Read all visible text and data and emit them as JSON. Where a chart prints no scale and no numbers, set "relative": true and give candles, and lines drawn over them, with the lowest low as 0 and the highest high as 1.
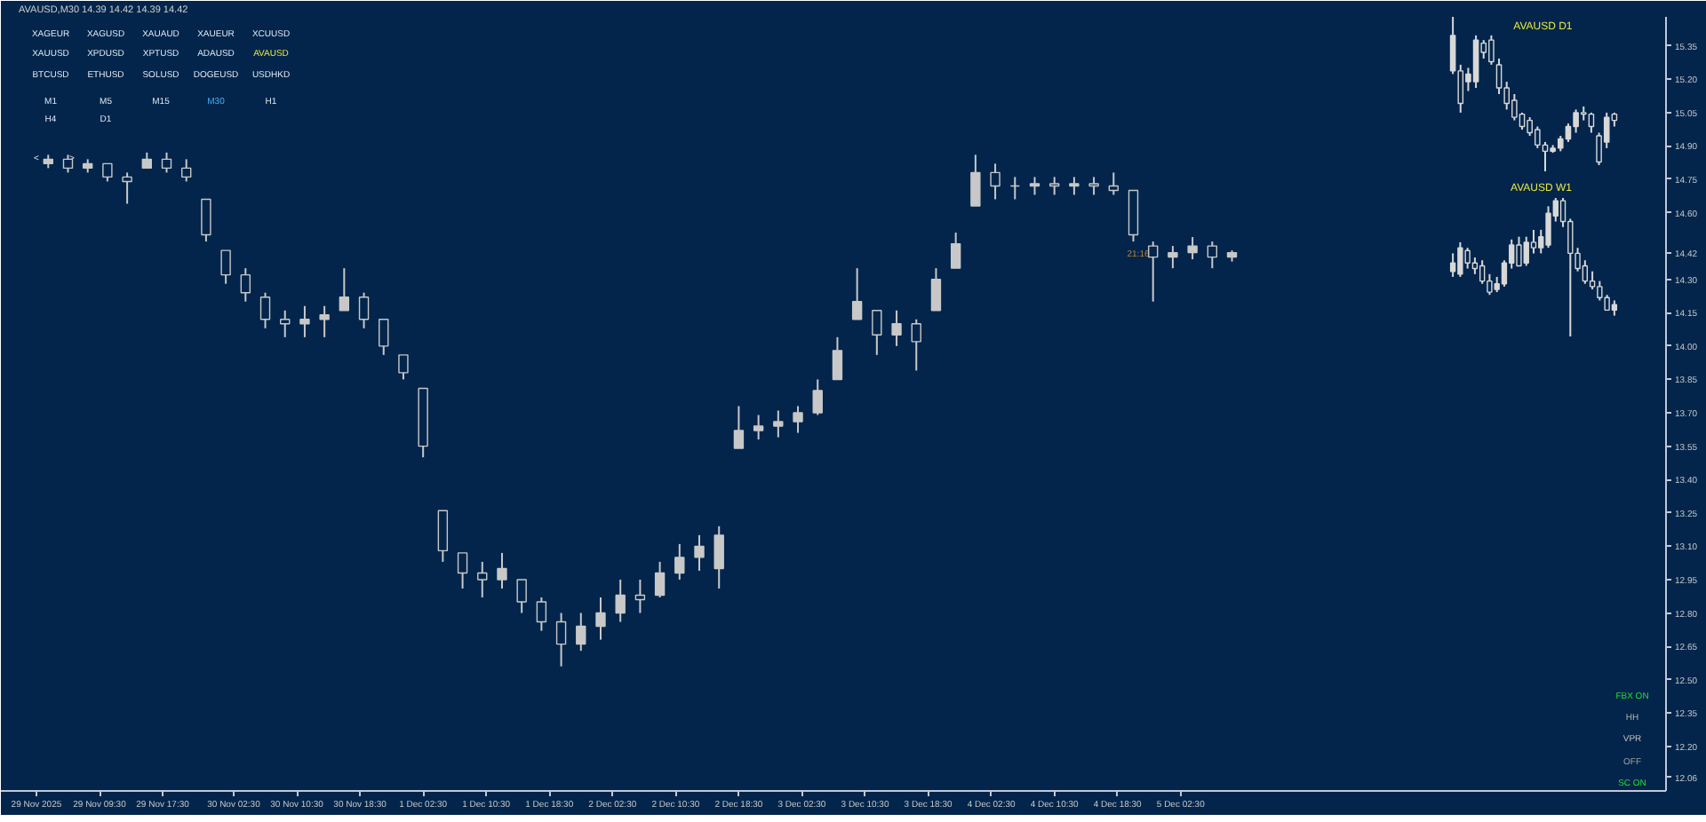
{
  "chart_data": [
    {
      "type": "candlestick",
      "title": "AVAUSD,M30 14.39 14.42 14.39 14.42",
      "color": "#c8c8c8",
      "x": [
        "2025-11-29T03:00",
        "2025-11-29T05:30",
        "2025-11-29T08:00",
        "2025-11-29T10:30",
        "2025-11-29T13:00",
        "2025-11-29T15:30",
        "2025-11-29T18:00",
        "2025-11-29T20:30",
        "2025-11-29T23:00",
        "2025-11-30T01:30",
        "2025-11-30T04:00",
        "2025-11-30T06:30",
        "2025-11-30T09:00",
        "2025-11-30T11:30",
        "2025-11-30T14:00",
        "2025-11-30T16:30",
        "2025-11-30T19:00",
        "2025-11-30T21:30",
        "2025-12-01T00:00",
        "2025-12-01T02:30",
        "2025-12-01T05:00",
        "2025-12-01T07:30",
        "2025-12-01T10:00",
        "2025-12-01T12:30",
        "2025-12-01T15:00",
        "2025-12-01T17:30",
        "2025-12-01T20:00",
        "2025-12-01T22:30",
        "2025-12-02T01:00",
        "2025-12-02T03:30",
        "2025-12-02T06:00",
        "2025-12-02T08:30",
        "2025-12-02T11:00",
        "2025-12-02T13:30",
        "2025-12-02T16:00",
        "2025-12-02T18:30",
        "2025-12-02T21:00",
        "2025-12-02T23:30",
        "2025-12-03T02:00",
        "2025-12-03T04:30",
        "2025-12-03T07:00",
        "2025-12-03T09:30",
        "2025-12-03T12:00",
        "2025-12-03T14:30",
        "2025-12-03T17:00",
        "2025-12-03T19:30",
        "2025-12-03T22:00",
        "2025-12-04T00:30",
        "2025-12-04T03:00",
        "2025-12-04T05:30",
        "2025-12-04T08:00",
        "2025-12-04T10:30",
        "2025-12-04T13:00",
        "2025-12-04T15:30",
        "2025-12-04T18:00",
        "2025-12-04T20:30",
        "2025-12-04T23:00",
        "2025-12-05T01:30",
        "2025-12-05T04:00",
        "2025-12-05T06:30",
        "2025-12-05T09:00"
      ],
      "ohlc": [
        [
          14.82,
          14.86,
          14.8,
          14.84
        ],
        [
          14.84,
          14.86,
          14.78,
          14.8
        ],
        [
          14.8,
          14.84,
          14.78,
          14.82
        ],
        [
          14.82,
          14.82,
          14.74,
          14.76
        ],
        [
          14.76,
          14.78,
          14.64,
          14.74
        ],
        [
          14.8,
          14.87,
          14.8,
          14.84
        ],
        [
          14.84,
          14.87,
          14.78,
          14.8
        ],
        [
          14.8,
          14.84,
          14.74,
          14.76
        ],
        [
          14.66,
          14.66,
          14.47,
          14.5
        ],
        [
          14.43,
          14.43,
          14.28,
          14.32
        ],
        [
          14.32,
          14.35,
          14.2,
          14.24
        ],
        [
          14.22,
          14.24,
          14.08,
          14.12
        ],
        [
          14.12,
          14.16,
          14.04,
          14.1
        ],
        [
          14.1,
          14.18,
          14.04,
          14.12
        ],
        [
          14.12,
          14.18,
          14.04,
          14.14
        ],
        [
          14.16,
          14.35,
          14.16,
          14.22
        ],
        [
          14.22,
          14.24,
          14.08,
          14.12
        ],
        [
          14.12,
          14.12,
          13.96,
          14.0
        ],
        [
          13.96,
          13.96,
          13.85,
          13.88
        ],
        [
          13.81,
          13.81,
          13.5,
          13.55
        ],
        [
          13.26,
          13.26,
          13.03,
          13.08
        ],
        [
          13.07,
          13.07,
          12.91,
          12.98
        ],
        [
          12.98,
          13.03,
          12.87,
          12.95
        ],
        [
          12.95,
          13.07,
          12.91,
          13.0
        ],
        [
          12.95,
          12.95,
          12.8,
          12.85
        ],
        [
          12.85,
          12.87,
          12.72,
          12.76
        ],
        [
          12.76,
          12.8,
          12.56,
          12.66
        ],
        [
          12.66,
          12.8,
          12.63,
          12.74
        ],
        [
          12.74,
          12.87,
          12.68,
          12.8
        ],
        [
          12.8,
          12.95,
          12.76,
          12.88
        ],
        [
          12.88,
          12.95,
          12.8,
          12.86
        ],
        [
          12.88,
          13.03,
          12.87,
          12.98
        ],
        [
          12.98,
          13.11,
          12.95,
          13.05
        ],
        [
          13.05,
          13.15,
          12.99,
          13.1
        ],
        [
          13.0,
          13.19,
          12.91,
          13.15
        ],
        [
          13.54,
          13.73,
          13.54,
          13.62
        ],
        [
          13.62,
          13.69,
          13.58,
          13.64
        ],
        [
          13.64,
          13.71,
          13.59,
          13.66
        ],
        [
          13.66,
          13.73,
          13.61,
          13.7
        ],
        [
          13.7,
          13.85,
          13.69,
          13.8
        ],
        [
          13.85,
          14.04,
          13.85,
          13.98
        ],
        [
          14.12,
          14.35,
          14.12,
          14.2
        ],
        [
          14.16,
          14.16,
          13.96,
          14.05
        ],
        [
          14.05,
          14.16,
          14.0,
          14.1
        ],
        [
          14.1,
          14.12,
          13.89,
          14.02
        ],
        [
          14.16,
          14.35,
          14.16,
          14.3
        ],
        [
          14.35,
          14.51,
          14.35,
          14.46
        ],
        [
          14.63,
          14.86,
          14.63,
          14.78
        ],
        [
          14.78,
          14.82,
          14.66,
          14.72
        ],
        [
          14.72,
          14.76,
          14.66,
          14.72
        ],
        [
          14.72,
          14.76,
          14.68,
          14.73
        ],
        [
          14.73,
          14.76,
          14.68,
          14.72
        ],
        [
          14.72,
          14.76,
          14.68,
          14.73
        ],
        [
          14.73,
          14.76,
          14.68,
          14.72
        ],
        [
          14.72,
          14.78,
          14.68,
          14.7
        ],
        [
          14.7,
          14.7,
          14.47,
          14.5
        ],
        [
          14.45,
          14.47,
          14.2,
          14.4
        ],
        [
          14.4,
          14.45,
          14.35,
          14.42
        ],
        [
          14.42,
          14.49,
          14.39,
          14.45
        ],
        [
          14.45,
          14.47,
          14.35,
          14.4
        ],
        [
          14.4,
          14.43,
          14.38,
          14.42
        ]
      ],
      "xlim": [
        "2025-11-28T21:00",
        "2025-12-07T16:00"
      ],
      "xticks": [
        {
          "value": "2025-11-29T01:30",
          "label": "29 Nov 2025"
        },
        {
          "value": "2025-11-29T09:30",
          "label": "29 Nov 09:30"
        },
        {
          "value": "2025-11-29T17:30",
          "label": "29 Nov 17:30"
        },
        {
          "value": "2025-11-30T02:30",
          "label": "30 Nov 02:30"
        },
        {
          "value": "2025-11-30T10:30",
          "label": "30 Nov 10:30"
        },
        {
          "value": "2025-11-30T18:30",
          "label": "30 Nov 18:30"
        },
        {
          "value": "2025-12-01T02:30",
          "label": "1 Dec 02:30"
        },
        {
          "value": "2025-12-01T10:30",
          "label": "1 Dec 10:30"
        },
        {
          "value": "2025-12-01T18:30",
          "label": "1 Dec 18:30"
        },
        {
          "value": "2025-12-02T02:30",
          "label": "2 Dec 02:30"
        },
        {
          "value": "2025-12-02T10:30",
          "label": "2 Dec 10:30"
        },
        {
          "value": "2025-12-02T18:30",
          "label": "2 Dec 18:30"
        },
        {
          "value": "2025-12-03T02:30",
          "label": "3 Dec 02:30"
        },
        {
          "value": "2025-12-03T10:30",
          "label": "3 Dec 10:30"
        },
        {
          "value": "2025-12-03T18:30",
          "label": "3 Dec 18:30"
        },
        {
          "value": "2025-12-04T02:30",
          "label": "4 Dec 02:30"
        },
        {
          "value": "2025-12-04T10:30",
          "label": "4 Dec 10:30"
        },
        {
          "value": "2025-12-04T18:30",
          "label": "4 Dec 18:30"
        },
        {
          "value": "2025-12-05T02:30",
          "label": "5 Dec 02:30"
        }
      ],
      "ylim": [
        12.0,
        15.48
      ],
      "yticks": [
        15.35,
        {
          "value": 15.2,
          "label": "15.20"
        },
        15.05,
        {
          "value": 14.9,
          "label": "14.90"
        },
        14.75,
        {
          "value": 14.6,
          "label": "14.60"
        },
        14.42,
        {
          "value": 14.3,
          "label": "14.30"
        },
        14.15,
        {
          "value": 14.0,
          "label": "14.00"
        },
        13.85,
        {
          "value": 13.7,
          "label": "13.70"
        },
        13.55,
        {
          "value": 13.4,
          "label": "13.40"
        },
        13.25,
        {
          "value": 13.1,
          "label": "13.10"
        },
        12.95,
        {
          "value": 12.8,
          "label": "12.80"
        },
        12.65,
        {
          "value": 12.5,
          "label": "12.50"
        },
        12.35,
        {
          "value": 12.2,
          "label": "12.20"
        },
        12.06
      ],
      "annotations": [
        "XAGEUR",
        "XAGUSD",
        "XAUAUD",
        "XAUEUR",
        "XCUUSD",
        "XAUUSD",
        "XPDUSD",
        "XPTUSD",
        "ADAUSD",
        "AVAUSD",
        "BTCUSD",
        "ETHUSD",
        "SOLUSD",
        "DOGEUSD",
        "USDHKD",
        "M1",
        "M5",
        "M15",
        "M30",
        "H1",
        "H4",
        "D1",
        "<",
        ">",
        "21:16",
        "FBX ON",
        "HH",
        "VPR",
        "OFF",
        "SC ON"
      ]
    },
    {
      "type": "candlestick",
      "title": "AVAUSD D1",
      "relative": true,
      "color": "#d8d8d8",
      "categories": [
        null,
        null,
        null,
        null,
        null,
        null,
        null,
        null,
        null,
        null,
        null,
        null,
        null,
        null,
        null,
        null,
        null,
        null,
        null,
        null,
        null,
        null
      ],
      "ohlc": [
        [
          0.65,
          1.0,
          0.63,
          0.88
        ],
        [
          0.65,
          0.69,
          0.38,
          0.44
        ],
        [
          0.58,
          0.67,
          0.52,
          0.63
        ],
        [
          0.58,
          0.88,
          0.54,
          0.85
        ],
        [
          0.83,
          0.85,
          0.73,
          0.77
        ],
        [
          0.85,
          0.88,
          0.69,
          0.71
        ],
        [
          0.69,
          0.73,
          0.5,
          0.54
        ],
        [
          0.54,
          0.58,
          0.4,
          0.44
        ],
        [
          0.46,
          0.5,
          0.33,
          0.35
        ],
        [
          0.37,
          0.38,
          0.27,
          0.29
        ],
        [
          0.33,
          0.35,
          0.23,
          0.25
        ],
        [
          0.27,
          0.29,
          0.15,
          0.17
        ],
        [
          0.17,
          0.19,
          0.0,
          0.13
        ],
        [
          0.13,
          0.17,
          0.12,
          0.15
        ],
        [
          0.15,
          0.23,
          0.13,
          0.21
        ],
        [
          0.21,
          0.31,
          0.19,
          0.29
        ],
        [
          0.29,
          0.4,
          0.25,
          0.38
        ],
        [
          0.38,
          0.42,
          0.33,
          0.37
        ],
        [
          0.37,
          0.38,
          0.25,
          0.29
        ],
        [
          0.23,
          0.25,
          0.04,
          0.06
        ],
        [
          0.19,
          0.38,
          0.15,
          0.35
        ],
        [
          0.37,
          0.38,
          0.29,
          0.33
        ]
      ]
    },
    {
      "type": "candlestick",
      "title": "AVAUSD W1",
      "relative": true,
      "color": "#d8d8d8",
      "categories": [
        null,
        null,
        null,
        null,
        null,
        null,
        null,
        null,
        null,
        null,
        null,
        null,
        null,
        null,
        null,
        null,
        null,
        null,
        null,
        null,
        null,
        null,
        null
      ],
      "ohlc": [
        [
          0.47,
          0.6,
          0.43,
          0.53
        ],
        [
          0.45,
          0.68,
          0.43,
          0.64
        ],
        [
          0.62,
          0.64,
          0.49,
          0.53
        ],
        [
          0.53,
          0.57,
          0.45,
          0.49
        ],
        [
          0.51,
          0.55,
          0.38,
          0.4
        ],
        [
          0.4,
          0.45,
          0.3,
          0.32
        ],
        [
          0.34,
          0.43,
          0.32,
          0.38
        ],
        [
          0.38,
          0.55,
          0.36,
          0.53
        ],
        [
          0.53,
          0.7,
          0.49,
          0.66
        ],
        [
          0.66,
          0.72,
          0.51,
          0.51
        ],
        [
          0.53,
          0.72,
          0.51,
          0.68
        ],
        [
          0.68,
          0.77,
          0.6,
          0.64
        ],
        [
          0.64,
          0.77,
          0.6,
          0.72
        ],
        [
          0.66,
          0.94,
          0.64,
          0.89
        ],
        [
          0.87,
          1.0,
          0.83,
          0.98
        ],
        [
          0.98,
          1.0,
          0.79,
          0.83
        ],
        [
          0.83,
          0.85,
          0.0,
          0.6
        ],
        [
          0.6,
          0.64,
          0.47,
          0.49
        ],
        [
          0.51,
          0.55,
          0.38,
          0.4
        ],
        [
          0.4,
          0.47,
          0.34,
          0.36
        ],
        [
          0.36,
          0.4,
          0.26,
          0.28
        ],
        [
          0.28,
          0.3,
          0.19,
          0.19
        ],
        [
          0.19,
          0.26,
          0.15,
          0.23
        ]
      ]
    }
  ]
}
